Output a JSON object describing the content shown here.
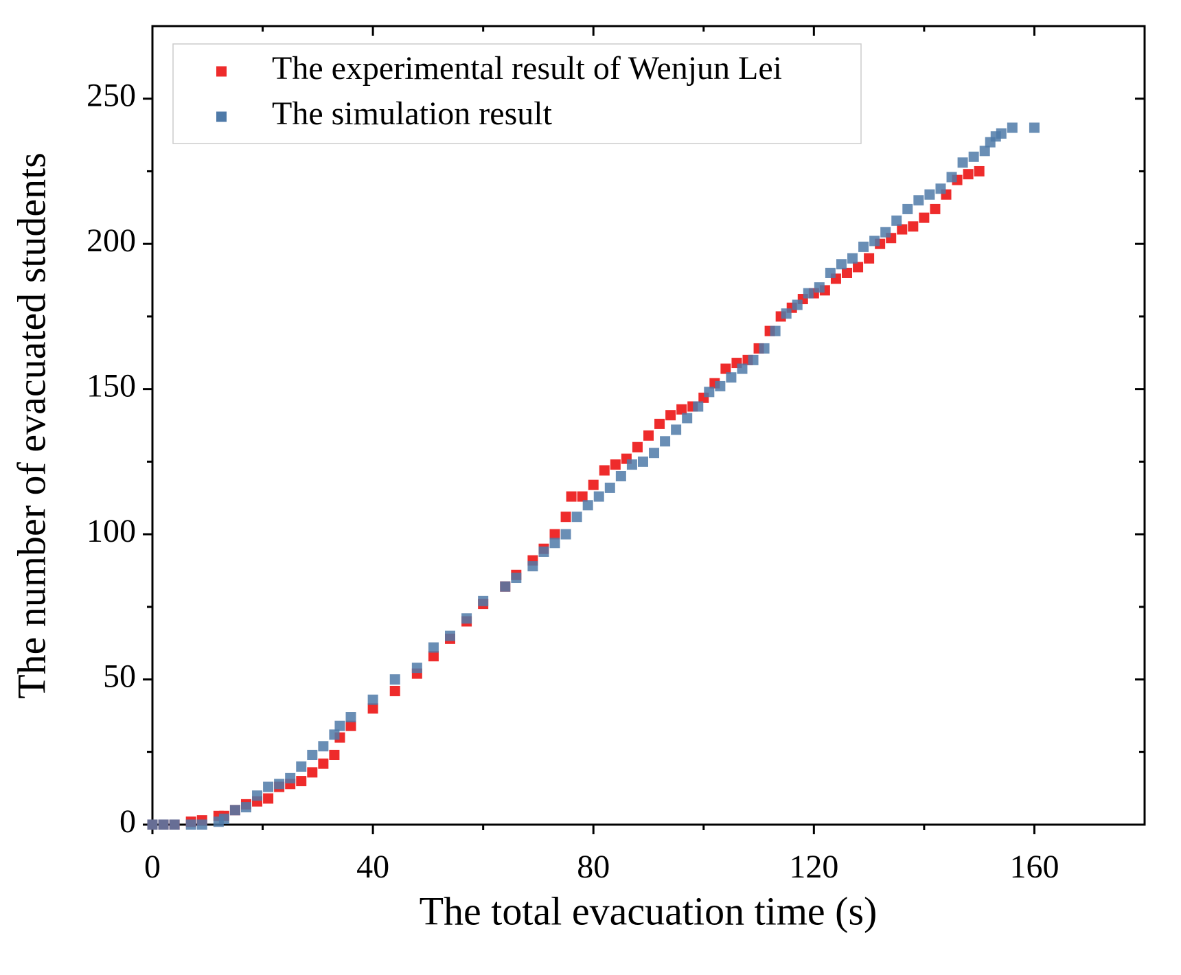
{
  "chart_data": {
    "type": "scatter",
    "xlabel": "The total evacuation time (s)",
    "ylabel": "The number of evacuated students",
    "xlim": [
      0,
      180
    ],
    "xticks": [
      0,
      40,
      80,
      120,
      160
    ],
    "ylim": [
      0,
      275
    ],
    "yticks": [
      0,
      50,
      100,
      150,
      200,
      250
    ],
    "legend": "upper left",
    "series": [
      {
        "name": "The experimental result of Wenjun Lei",
        "color": "#ee2b2b",
        "x": [
          0,
          2,
          4,
          7,
          9,
          12,
          13,
          15,
          17,
          19,
          21,
          23,
          25,
          27,
          29,
          31,
          33,
          34,
          36,
          40,
          44,
          48,
          51,
          54,
          57,
          60,
          64,
          66,
          69,
          71,
          73,
          75,
          76,
          78,
          80,
          82,
          84,
          86,
          88,
          90,
          92,
          94,
          96,
          98,
          100,
          102,
          104,
          106,
          108,
          110,
          112,
          114,
          116,
          118,
          120,
          122,
          124,
          126,
          128,
          130,
          132,
          134,
          136,
          138,
          140,
          142,
          144,
          146,
          148,
          150
        ],
        "values": [
          0,
          0,
          0,
          1,
          1.5,
          3,
          3,
          5,
          7,
          8,
          9,
          13,
          14,
          15,
          18,
          21,
          24,
          30,
          34,
          40,
          46,
          52,
          58,
          64,
          70,
          76,
          82,
          86,
          91,
          95,
          100,
          106,
          113,
          113,
          117,
          122,
          124,
          126,
          130,
          134,
          138,
          141,
          143,
          144,
          147,
          152,
          157,
          159,
          160,
          164,
          170,
          175,
          178,
          181,
          183,
          184,
          188,
          190,
          192,
          195,
          200,
          202,
          205,
          206,
          209,
          212,
          217,
          222,
          224,
          225
        ]
      },
      {
        "name": "The simulation result",
        "color": "#4f7aa8",
        "x": [
          0,
          2,
          4,
          7,
          9,
          12,
          13,
          15,
          17,
          19,
          21,
          23,
          25,
          27,
          29,
          31,
          33,
          34,
          36,
          40,
          44,
          48,
          51,
          54,
          57,
          60,
          64,
          66,
          69,
          71,
          73,
          75,
          77,
          79,
          81,
          83,
          85,
          87,
          89,
          91,
          93,
          95,
          97,
          99,
          101,
          103,
          105,
          107,
          109,
          111,
          113,
          115,
          117,
          119,
          121,
          123,
          125,
          127,
          129,
          131,
          133,
          135,
          137,
          139,
          141,
          143,
          145,
          147,
          149,
          151,
          152,
          153,
          154,
          156,
          160
        ],
        "values": [
          0,
          0,
          0,
          0,
          0,
          1,
          2,
          5,
          6,
          10,
          13,
          14,
          16,
          20,
          24,
          27,
          31,
          34,
          37,
          43,
          50,
          54,
          61,
          65,
          71,
          77,
          82,
          85,
          89,
          94,
          97,
          100,
          106,
          110,
          113,
          116,
          120,
          124,
          125,
          128,
          132,
          136,
          140,
          144,
          149,
          151,
          154,
          157,
          160,
          164,
          170,
          176,
          179,
          183,
          185,
          190,
          193,
          195,
          199,
          201,
          204,
          208,
          212,
          215,
          217,
          219,
          223,
          228,
          230,
          232,
          235,
          237,
          238,
          240,
          240
        ]
      }
    ]
  }
}
